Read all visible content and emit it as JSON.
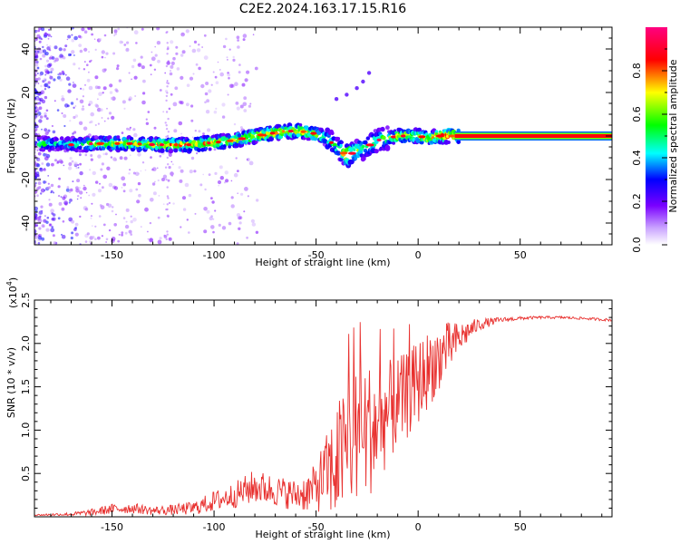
{
  "title": "C2E2.2024.163.17.15.R16",
  "chart_data": [
    {
      "type": "heatmap",
      "xlabel": "Height of straight line (km)",
      "ylabel": "Frequency (Hz)",
      "xlim": [
        -188,
        95
      ],
      "ylim": [
        -50,
        50
      ],
      "x_ticks": [
        -150,
        -100,
        -50,
        0,
        50
      ],
      "y_ticks": [
        -40,
        -20,
        0,
        20,
        40
      ],
      "colorbar": {
        "label": "Normalized spectral amplitude",
        "range": [
          0,
          1
        ],
        "ticks": [
          "0.0",
          "0.2",
          "0.4",
          "0.6",
          "0.8"
        ],
        "tick_values": [
          0.0,
          0.2,
          0.4,
          0.6,
          0.8
        ],
        "colors": [
          "#ffffff",
          "#7a00ff",
          "#0000ff",
          "#00ffff",
          "#00ff00",
          "#ffff00",
          "#ff0000",
          "#ff0080"
        ]
      },
      "ridge": {
        "x": [
          -186,
          -180,
          -175,
          -170,
          -165,
          -160,
          -150,
          -140,
          -130,
          -120,
          -110,
          -100,
          -90,
          -80,
          -70,
          -60,
          -50,
          -45,
          -40,
          -35,
          -30,
          -25,
          -20,
          -15,
          -10,
          -5,
          0,
          5,
          10,
          15,
          20,
          95
        ],
        "y": [
          -3.5,
          -3.5,
          -3.5,
          -4,
          -4,
          -3.5,
          -3.5,
          -3.5,
          -4,
          -4,
          -4,
          -3,
          -2,
          0,
          1.5,
          2.5,
          1,
          -1,
          -5,
          -9,
          -7,
          -5,
          -2,
          -1,
          0,
          0,
          0,
          -1,
          0,
          0,
          0,
          0
        ],
        "amplitude": [
          0.6,
          0.5,
          0.45,
          0.5,
          0.55,
          0.65,
          0.7,
          0.7,
          0.7,
          0.8,
          0.75,
          0.8,
          0.7,
          0.8,
          0.85,
          0.8,
          0.7,
          0.55,
          0.5,
          0.85,
          0.6,
          0.5,
          0.55,
          0.6,
          0.8,
          0.7,
          0.7,
          0.8,
          0.85,
          0.9,
          1.0,
          1.0
        ]
      },
      "secondary_track": {
        "x": [
          -40,
          -35,
          -30,
          -27,
          -24
        ],
        "y": [
          17,
          19,
          22,
          25,
          29
        ]
      }
    },
    {
      "type": "line",
      "xlabel": "Height of straight line (km)",
      "ylabel": "SNR (10 * v/v)",
      "y_exponent_label": "(x10",
      "y_exponent_value": "4",
      "y_exponent_close": ")",
      "xlim": [
        -188,
        95
      ],
      "ylim": [
        0,
        25000
      ],
      "x_ticks": [
        -150,
        -100,
        -50,
        0,
        50
      ],
      "y_ticks": [
        5000,
        10000,
        15000,
        20000,
        25000
      ],
      "y_tick_labels": [
        "0.5",
        "1.0",
        "1.5",
        "2.0",
        "2.5"
      ],
      "color": "#e8302e",
      "x": [
        -188,
        -170,
        -160,
        -150,
        -140,
        -130,
        -120,
        -110,
        -100,
        -90,
        -80,
        -70,
        -60,
        -52,
        -45,
        -40,
        -35,
        -30,
        -25,
        -20,
        -15,
        -10,
        -5,
        0,
        5,
        10,
        15,
        20,
        25,
        30,
        40,
        50,
        60,
        70,
        80,
        95
      ],
      "y": [
        200,
        300,
        500,
        900,
        1000,
        700,
        800,
        1000,
        1800,
        2500,
        3500,
        3000,
        2500,
        3000,
        5000,
        6000,
        8000,
        9500,
        10000,
        10500,
        12000,
        13000,
        14000,
        15500,
        17000,
        18500,
        19500,
        20500,
        21500,
        22200,
        22700,
        22900,
        23000,
        23000,
        22900,
        22700
      ],
      "noise": [
        100,
        200,
        400,
        600,
        600,
        500,
        600,
        800,
        1200,
        1500,
        2000,
        1800,
        1800,
        2500,
        4500,
        7000,
        8000,
        8000,
        8000,
        7000,
        6000,
        5500,
        5000,
        5000,
        4500,
        4000,
        3000,
        2000,
        1200,
        700,
        300,
        200,
        150,
        150,
        150,
        150
      ]
    }
  ]
}
